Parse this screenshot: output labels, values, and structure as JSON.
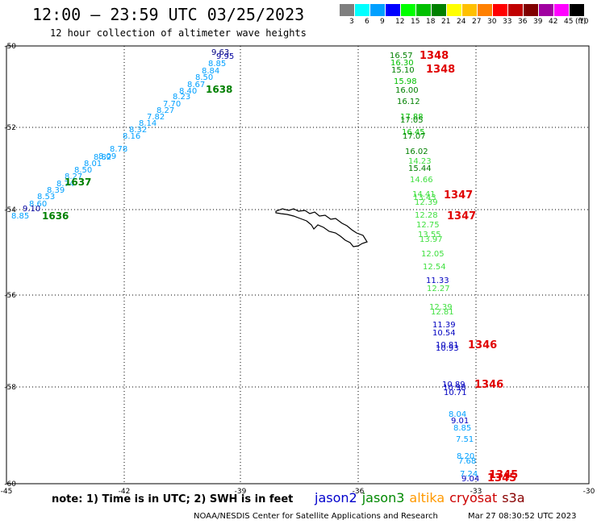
{
  "header": {
    "title": "12:00 – 23:59 UTC 03/25/2023",
    "subtitle": "12 hour collection of altimeter wave heights"
  },
  "scale": {
    "unit": "(ft)",
    "ticks": [
      "3",
      "6",
      "9",
      "12",
      "15",
      "18",
      "21",
      "24",
      "27",
      "30",
      "33",
      "36",
      "39",
      "42",
      "45",
      "70"
    ],
    "colors": [
      "#7f7f7f",
      "#00ffff",
      "#00a0ff",
      "#0000ff",
      "#00ff00",
      "#00c000",
      "#008000",
      "#ffff00",
      "#ffc000",
      "#ff8000",
      "#ff0000",
      "#c00000",
      "#800000",
      "#a000a0",
      "#ff00ff",
      "#000000"
    ]
  },
  "map": {
    "lon_range": [
      -45,
      -30
    ],
    "lat_range": [
      -50,
      -60
    ],
    "lon_ticks": [
      "-45",
      "-42",
      "-39",
      "-36",
      "-33",
      "-30"
    ],
    "lat_ticks": [
      "-50",
      "-52",
      "-54",
      "-56",
      "-58",
      "-60"
    ]
  },
  "tracks": {
    "diagonal": [
      {
        "t": "9.63",
        "c": "#00007f"
      },
      {
        "t": "9.95",
        "c": "#0000a0"
      },
      {
        "t": "8.85",
        "c": "#00a0ff"
      },
      {
        "t": "8.84",
        "c": "#00a0ff"
      },
      {
        "t": "8.50",
        "c": "#00a0ff"
      },
      {
        "t": "8.67",
        "c": "#00a0ff"
      },
      {
        "t": "8.40",
        "c": "#00a0ff"
      },
      {
        "t": "8.23",
        "c": "#00a0ff"
      },
      {
        "t": "7.70",
        "c": "#00a0ff"
      },
      {
        "t": "8.27",
        "c": "#00a0ff"
      },
      {
        "t": "7.82",
        "c": "#00a0ff"
      },
      {
        "t": "8.14",
        "c": "#00a0ff"
      },
      {
        "t": "8.32",
        "c": "#00a0ff"
      },
      {
        "t": "8.16",
        "c": "#00a0ff"
      },
      {
        "t": "8.78",
        "c": "#00a0ff"
      },
      {
        "t": "8.09",
        "c": "#00a0ff"
      },
      {
        "t": "8.82",
        "c": "#00a0ff"
      },
      {
        "t": "8.01",
        "c": "#00a0ff"
      },
      {
        "t": "8.50",
        "c": "#00a0ff"
      },
      {
        "t": "8.27",
        "c": "#00a0ff"
      },
      {
        "t": "8.74",
        "c": "#00a0ff"
      },
      {
        "t": "8.39",
        "c": "#00a0ff"
      },
      {
        "t": "8.53",
        "c": "#00a0ff"
      },
      {
        "t": "8.60",
        "c": "#00a0ff"
      },
      {
        "t": "9.10",
        "c": "#0000a0"
      },
      {
        "t": "8.85",
        "c": "#00a0ff"
      }
    ],
    "diagonal_times": [
      {
        "t": "1638",
        "c": "#008000"
      },
      {
        "t": "1637",
        "c": "#008000"
      },
      {
        "t": "1636",
        "c": "#008000"
      }
    ],
    "vertical": [
      {
        "t": "16.57",
        "c": "#008000"
      },
      {
        "t": "16.30",
        "c": "#00c000"
      },
      {
        "t": "15.10",
        "c": "#008000"
      },
      {
        "t": "15.98",
        "c": "#00c000"
      },
      {
        "t": "16.00",
        "c": "#008000"
      },
      {
        "t": "16.12",
        "c": "#008000"
      },
      {
        "t": "17.88",
        "c": "#00c000"
      },
      {
        "t": "17.05",
        "c": "#008000"
      },
      {
        "t": "16.45",
        "c": "#00c000"
      },
      {
        "t": "17.07",
        "c": "#008000"
      },
      {
        "t": "16.02",
        "c": "#008000"
      },
      {
        "t": "14.23",
        "c": "#40e040"
      },
      {
        "t": "15.44",
        "c": "#008000"
      },
      {
        "t": "14.66",
        "c": "#40e040"
      },
      {
        "t": "14.41",
        "c": "#40e040"
      },
      {
        "t": "13.43",
        "c": "#40e040"
      },
      {
        "t": "12.39",
        "c": "#40e040"
      },
      {
        "t": "12.28",
        "c": "#40e040"
      },
      {
        "t": "12.75",
        "c": "#40e040"
      },
      {
        "t": "13.55",
        "c": "#40e040"
      },
      {
        "t": "13.97",
        "c": "#40e040"
      },
      {
        "t": "12.05",
        "c": "#40e040"
      },
      {
        "t": "12.54",
        "c": "#40e040"
      },
      {
        "t": "11.33",
        "c": "#0000c0"
      },
      {
        "t": "12.27",
        "c": "#40e040"
      },
      {
        "t": "12.39",
        "c": "#40e040"
      },
      {
        "t": "12.81",
        "c": "#40e040"
      },
      {
        "t": "11.39",
        "c": "#0000c0"
      },
      {
        "t": "10.54",
        "c": "#0000c0"
      },
      {
        "t": "10.81",
        "c": "#0000c0"
      },
      {
        "t": "10.93",
        "c": "#0000c0"
      },
      {
        "t": "10.89",
        "c": "#0000c0"
      },
      {
        "t": "10.98",
        "c": "#0000c0"
      },
      {
        "t": "10.71",
        "c": "#0000c0"
      },
      {
        "t": "8.04",
        "c": "#00a0ff"
      },
      {
        "t": "9.01",
        "c": "#0000c0"
      },
      {
        "t": "8.85",
        "c": "#00a0ff"
      },
      {
        "t": "7.51",
        "c": "#00a0ff"
      },
      {
        "t": "8.20",
        "c": "#00a0ff"
      },
      {
        "t": "7.68",
        "c": "#00a0ff"
      },
      {
        "t": "7.24",
        "c": "#00a0ff"
      },
      {
        "t": "9.04",
        "c": "#0000c0"
      }
    ],
    "vertical_times": [
      {
        "t": "1348",
        "c": "#e00000"
      },
      {
        "t": "1348",
        "c": "#e00000"
      },
      {
        "t": "1347",
        "c": "#e00000"
      },
      {
        "t": "1347",
        "c": "#e00000"
      },
      {
        "t": "1346",
        "c": "#e00000"
      },
      {
        "t": "1346",
        "c": "#e00000"
      },
      {
        "t": "1345",
        "c": "#e00000"
      },
      {
        "t": "1345",
        "c": "#e00000"
      }
    ]
  },
  "footer": {
    "note": "note:  1) Time is in UTC;  2) SWH is in feet",
    "legend": [
      {
        "label": "jason2",
        "color": "#0000cc"
      },
      {
        "label": "jason3",
        "color": "#008800"
      },
      {
        "label": "altika",
        "color": "#ff9900"
      },
      {
        "label": "cryosat",
        "color": "#cc0000"
      },
      {
        "label": "s3a",
        "color": "#880000"
      }
    ],
    "credit": "NOAA/NESDIS Center for Satellite Applications and Research",
    "timestamp": "Mar 27 08:30:52 UTC 2023"
  }
}
